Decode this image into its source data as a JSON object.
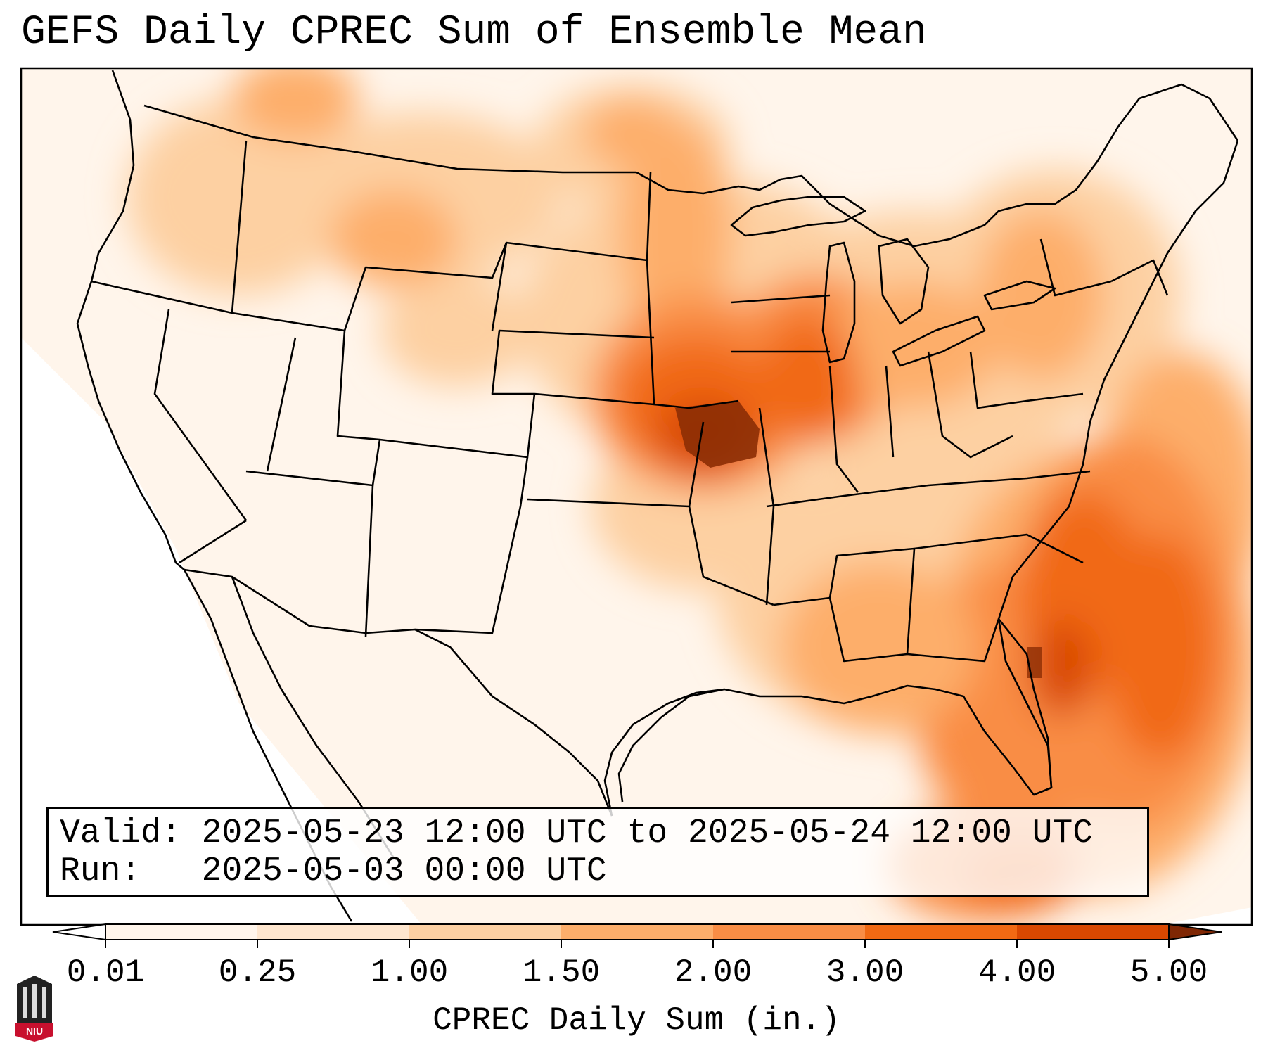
{
  "title": "GEFS Daily CPREC Sum of Ensemble Mean",
  "infobox": {
    "valid_label": "Valid:",
    "valid_value": "2025-05-23 12:00 UTC to 2025-05-24 12:00 UTC",
    "run_label": "Run:",
    "run_value": "2025-05-03 00:00 UTC"
  },
  "colorbar": {
    "title": "CPREC Daily Sum (in.)",
    "ticks": [
      "0.01",
      "0.25",
      "1.00",
      "1.50",
      "2.00",
      "3.00",
      "4.00",
      "5.00"
    ],
    "colors": [
      "#fff5eb",
      "#fee6ce",
      "#fdd0a2",
      "#fdae6b",
      "#f98d45",
      "#f16913",
      "#d94801",
      "#8c2d04"
    ],
    "under_color": "#ffffff",
    "over_color": "#7f2704"
  },
  "logo": {
    "text": "NIU",
    "color": "#c8102e"
  },
  "map": {
    "projection": "lambert-conformal",
    "region": "CONUS",
    "variable": "convective precipitation daily sum (in.)"
  }
}
